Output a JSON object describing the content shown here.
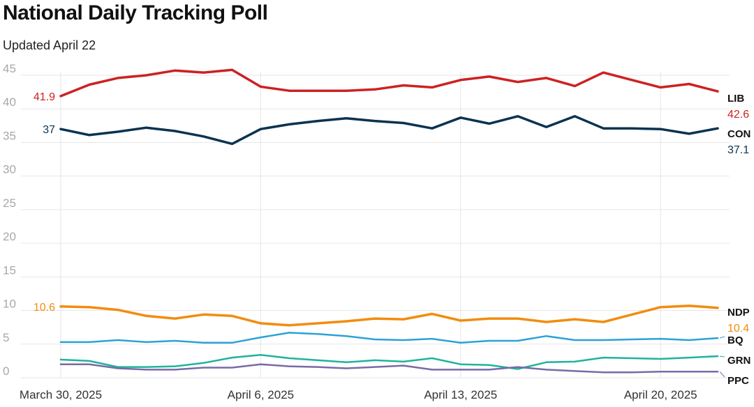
{
  "page": {
    "title": "National Daily Tracking Poll",
    "subtitle": "Updated April 22"
  },
  "chart_data": {
    "type": "line",
    "title": "National Daily Tracking Poll",
    "subtitle": "Updated April 22",
    "ylim": [
      0,
      45
    ],
    "yticks": [
      0,
      5,
      10,
      15,
      20,
      25,
      30,
      35,
      40,
      45
    ],
    "xlim": [
      "2025-03-30",
      "2025-04-22"
    ],
    "xticks": [
      {
        "date": "2025-03-30",
        "label": "March 30, 2025"
      },
      {
        "date": "2025-04-06",
        "label": "April 6, 2025"
      },
      {
        "date": "2025-04-13",
        "label": "April 13, 2025"
      },
      {
        "date": "2025-04-20",
        "label": "April 20, 2025"
      }
    ],
    "x": [
      "2025-03-30",
      "2025-03-31",
      "2025-04-01",
      "2025-04-02",
      "2025-04-03",
      "2025-04-04",
      "2025-04-05",
      "2025-04-06",
      "2025-04-07",
      "2025-04-08",
      "2025-04-09",
      "2025-04-10",
      "2025-04-11",
      "2025-04-12",
      "2025-04-13",
      "2025-04-14",
      "2025-04-15",
      "2025-04-16",
      "2025-04-17",
      "2025-04-18",
      "2025-04-19",
      "2025-04-20",
      "2025-04-21",
      "2025-04-22"
    ],
    "grid": "both",
    "series": [
      {
        "name": "LIB",
        "color": "#cc2222",
        "start_label": "41.9",
        "end_label": "42.6",
        "values": [
          41.9,
          43.6,
          44.6,
          45.0,
          45.7,
          45.4,
          45.8,
          43.3,
          42.7,
          42.7,
          42.7,
          42.9,
          43.5,
          43.2,
          44.3,
          44.8,
          44.0,
          44.6,
          43.4,
          45.4,
          44.3,
          43.2,
          43.7,
          42.6
        ]
      },
      {
        "name": "CON",
        "color": "#0a3351",
        "start_label": "37",
        "end_label": "37.1",
        "values": [
          37.0,
          36.1,
          36.6,
          37.2,
          36.7,
          35.9,
          34.8,
          37.0,
          37.7,
          38.2,
          38.6,
          38.2,
          37.9,
          37.1,
          38.7,
          37.8,
          38.9,
          37.3,
          38.9,
          37.1,
          37.1,
          37.0,
          36.3,
          37.1
        ]
      },
      {
        "name": "NDP",
        "color": "#f28c0f",
        "start_label": "10.6",
        "end_label": "10.4",
        "values": [
          10.6,
          10.5,
          10.1,
          9.2,
          8.8,
          9.4,
          9.2,
          8.1,
          7.8,
          8.1,
          8.4,
          8.8,
          8.7,
          9.5,
          8.5,
          8.8,
          8.8,
          8.3,
          8.7,
          8.3,
          9.4,
          10.5,
          10.7,
          10.4
        ]
      },
      {
        "name": "BQ",
        "color": "#2aa3d4",
        "values": [
          5.3,
          5.3,
          5.6,
          5.3,
          5.5,
          5.2,
          5.2,
          6.0,
          6.7,
          6.5,
          6.2,
          5.7,
          5.6,
          5.8,
          5.2,
          5.5,
          5.5,
          6.2,
          5.6,
          5.6,
          5.7,
          5.8,
          5.6,
          5.9
        ]
      },
      {
        "name": "GRN",
        "color": "#1fb39c",
        "values": [
          2.7,
          2.5,
          1.6,
          1.6,
          1.7,
          2.2,
          3.0,
          3.4,
          2.9,
          2.6,
          2.3,
          2.6,
          2.4,
          2.9,
          2.0,
          1.9,
          1.3,
          2.3,
          2.4,
          3.0,
          2.9,
          2.8,
          3.0,
          3.2
        ]
      },
      {
        "name": "PPC",
        "color": "#7a6aa6",
        "values": [
          2.0,
          2.0,
          1.4,
          1.2,
          1.2,
          1.5,
          1.5,
          2.0,
          1.7,
          1.6,
          1.4,
          1.6,
          1.8,
          1.2,
          1.2,
          1.2,
          1.6,
          1.2,
          1.0,
          0.8,
          0.8,
          0.9,
          0.9,
          0.9
        ]
      }
    ]
  }
}
